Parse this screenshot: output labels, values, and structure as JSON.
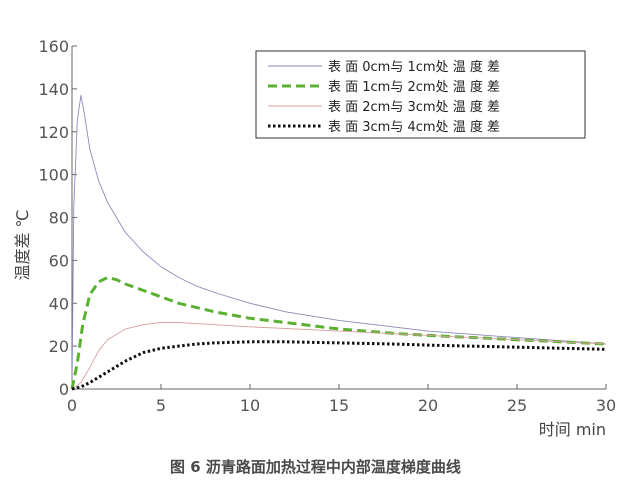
{
  "chart_data": {
    "type": "line",
    "title": "",
    "xlabel": "时间 min",
    "ylabel": "温度差 ℃",
    "xlim": [
      0,
      30
    ],
    "ylim": [
      0,
      160
    ],
    "xticks": [
      0,
      5,
      10,
      15,
      20,
      25,
      30
    ],
    "yticks": [
      0,
      20,
      40,
      60,
      80,
      100,
      120,
      140,
      160
    ],
    "grid": false,
    "legend_position": "top-right",
    "series": [
      {
        "name": "表 面 0cm与 1cm处 温 度 差",
        "color": "#8a8ab8",
        "style": "thin-solid",
        "x": [
          0,
          0.1,
          0.3,
          0.5,
          0.7,
          1,
          1.5,
          2,
          3,
          4,
          5,
          6,
          7,
          8,
          10,
          12,
          15,
          18,
          20,
          25,
          30
        ],
        "y": [
          0,
          85,
          125,
          137,
          128,
          112,
          97,
          87,
          73,
          64,
          57,
          52,
          48,
          45,
          40,
          36,
          32,
          29,
          27,
          24,
          21
        ]
      },
      {
        "name": "表 面 1cm与 2cm处 温 度 差",
        "color": "#5ab030",
        "style": "thick-dashed",
        "x": [
          0,
          0.3,
          0.6,
          1,
          1.5,
          2,
          2.5,
          3,
          4,
          5,
          6,
          8,
          10,
          12,
          15,
          18,
          20,
          25,
          30
        ],
        "y": [
          0,
          12,
          30,
          44,
          50,
          52,
          51,
          49,
          46,
          43,
          40,
          36,
          33,
          31,
          28,
          26,
          25,
          23,
          21
        ]
      },
      {
        "name": "表 面 2cm与 3cm处 温 度 差",
        "color": "#d8a0a0",
        "style": "thin-solid",
        "x": [
          0,
          0.5,
          1,
          1.5,
          2,
          3,
          4,
          5,
          6,
          8,
          10,
          15,
          20,
          25,
          30
        ],
        "y": [
          0,
          3,
          10,
          18,
          23,
          28,
          30,
          31,
          31,
          30,
          29,
          27,
          25,
          23,
          21
        ]
      },
      {
        "name": "表 面 3cm与 4cm处 温 度 差",
        "color": "#111111",
        "style": "dotted",
        "x": [
          0,
          0.5,
          1,
          2,
          3,
          4,
          5,
          6,
          7,
          8,
          10,
          12,
          15,
          18,
          20,
          25,
          30
        ],
        "y": [
          0,
          1,
          3,
          8,
          13,
          17,
          19,
          20,
          21,
          21.5,
          22,
          22,
          21.5,
          21,
          20.5,
          19.5,
          18.5
        ]
      }
    ]
  },
  "caption": "图 6   沥青路面加热过程中内部温度梯度曲线"
}
